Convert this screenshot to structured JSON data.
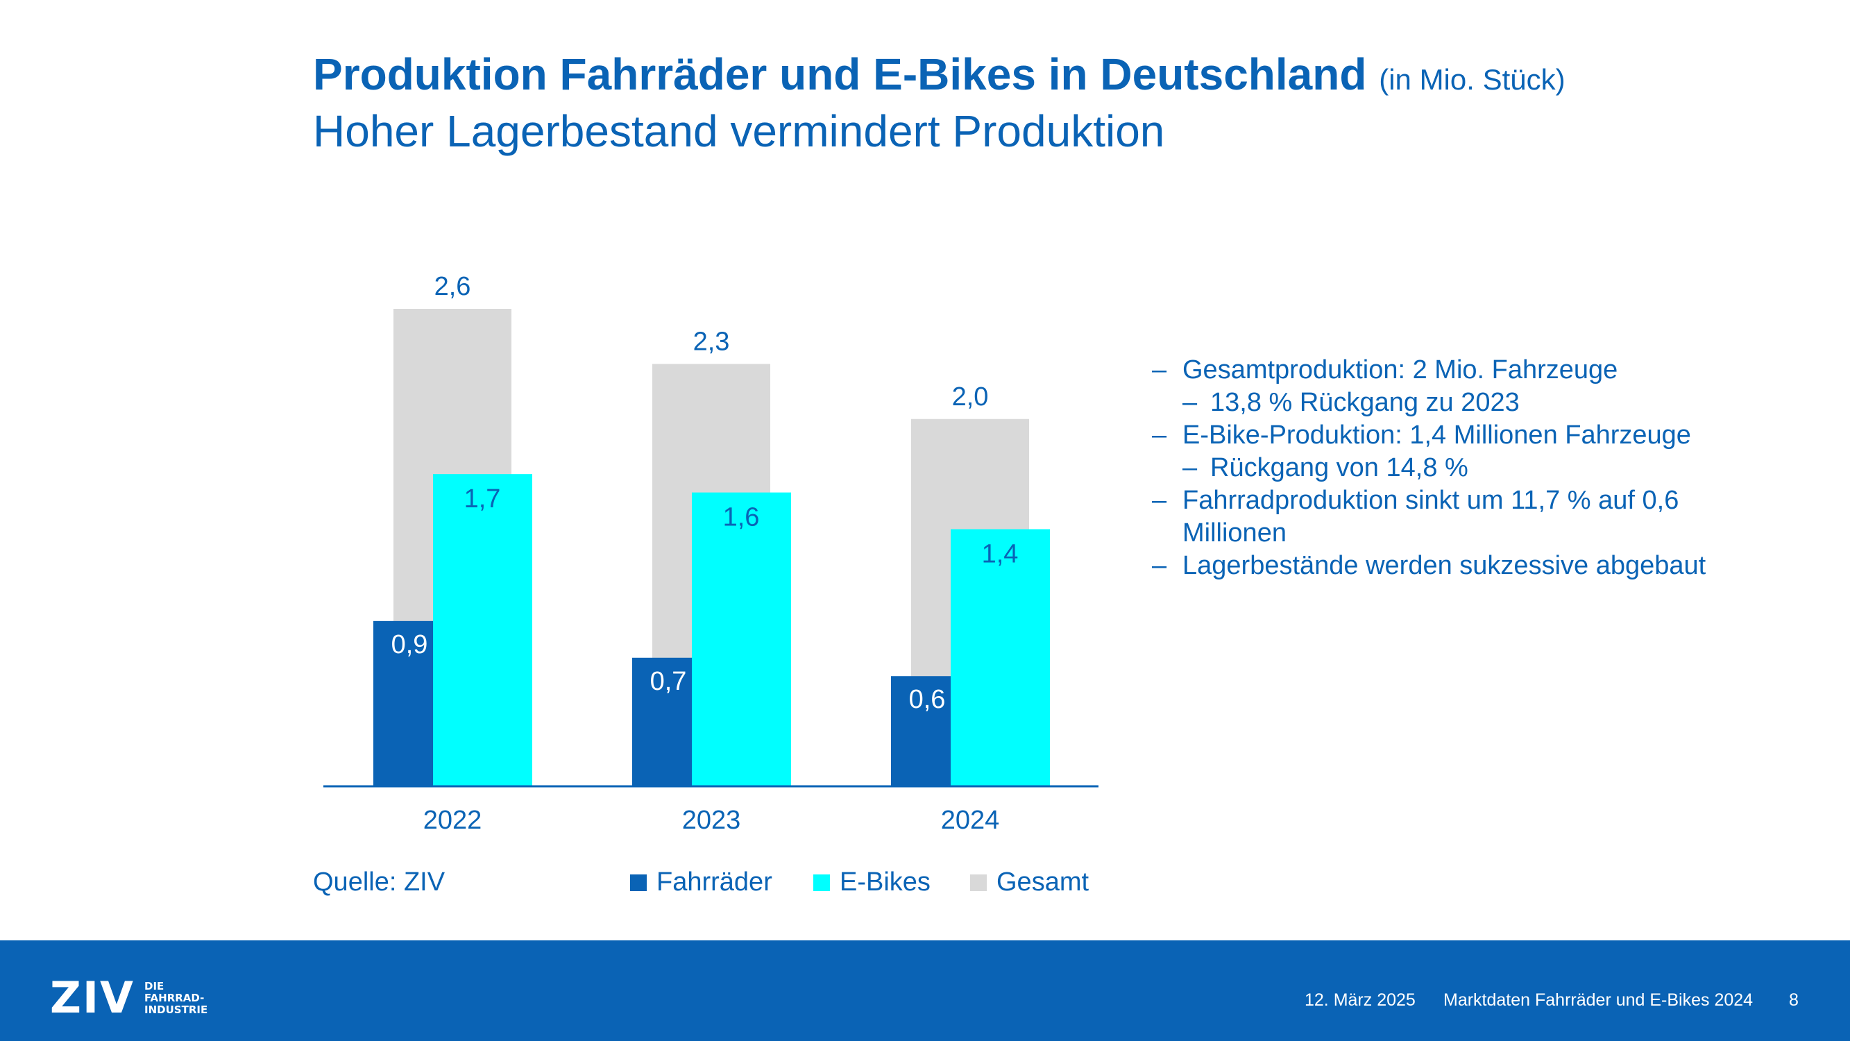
{
  "header": {
    "title": "Produktion Fahrräder und E-Bikes in Deutschland",
    "title_unit": "(in Mio. Stück)",
    "subtitle": "Hoher Lagerbestand vermindert Produktion"
  },
  "chart_data": {
    "type": "bar",
    "categories": [
      "2022",
      "2023",
      "2024"
    ],
    "series": [
      {
        "name": "Fahrräder",
        "values": [
          0.9,
          0.7,
          0.6
        ],
        "labels": [
          "0,9",
          "0,7",
          "0,6"
        ],
        "color": "#0a63b5"
      },
      {
        "name": "E-Bikes",
        "values": [
          1.7,
          1.6,
          1.4
        ],
        "labels": [
          "1,7",
          "1,6",
          "1,4"
        ],
        "color": "#00ffff"
      },
      {
        "name": "Gesamt",
        "values": [
          2.6,
          2.3,
          2.0
        ],
        "labels": [
          "2,6",
          "2,3",
          "2,0"
        ],
        "color": "#d9d9d9"
      }
    ],
    "ylim": [
      0,
      2.6
    ],
    "grid": false,
    "legend": "bottom"
  },
  "source": "Quelle: ZIV",
  "bullets": [
    {
      "text": "Gesamtproduktion: 2 Mio. Fahrzeuge",
      "sub": [
        "13,8 % Rückgang zu 2023"
      ]
    },
    {
      "text": "E-Bike-Produktion: 1,4 Millionen Fahrzeuge",
      "sub": [
        "Rückgang von 14,8 %"
      ]
    },
    {
      "text": "Fahrradproduktion sinkt um 11,7 % auf 0,6 Millionen",
      "sub": []
    },
    {
      "text": "Lagerbestände werden sukzessive abgebaut",
      "sub": []
    }
  ],
  "bullet_marker": "–",
  "footer": {
    "logo_mark": "ZIV",
    "logo_line1": "DIE",
    "logo_line2": "FAHRRAD-",
    "logo_line3": "INDUSTRIE",
    "date": "12. März 2025",
    "title": "Marktdaten Fahrräder und E-Bikes 2024",
    "page": "8"
  },
  "colors": {
    "brand_blue": "#0a63b5",
    "cyan": "#00ffff",
    "grey": "#d9d9d9",
    "white": "#ffffff"
  }
}
